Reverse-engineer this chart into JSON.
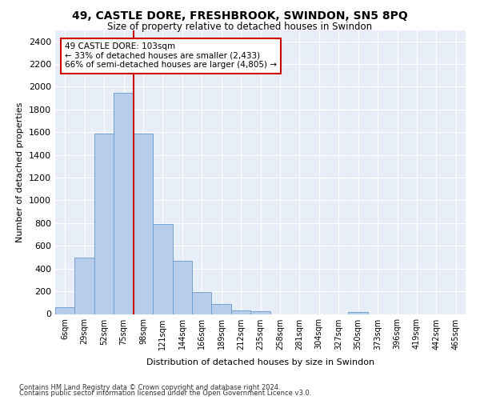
{
  "title": "49, CASTLE DORE, FRESHBROOK, SWINDON, SN5 8PQ",
  "subtitle": "Size of property relative to detached houses in Swindon",
  "xlabel": "Distribution of detached houses by size in Swindon",
  "ylabel": "Number of detached properties",
  "footnote1": "Contains HM Land Registry data © Crown copyright and database right 2024.",
  "footnote2": "Contains public sector information licensed under the Open Government Licence v3.0.",
  "categories": [
    "6sqm",
    "29sqm",
    "52sqm",
    "75sqm",
    "98sqm",
    "121sqm",
    "144sqm",
    "166sqm",
    "189sqm",
    "212sqm",
    "235sqm",
    "258sqm",
    "281sqm",
    "304sqm",
    "327sqm",
    "350sqm",
    "373sqm",
    "396sqm",
    "419sqm",
    "442sqm",
    "465sqm"
  ],
  "bar_values": [
    60,
    500,
    1590,
    1950,
    1590,
    790,
    470,
    195,
    90,
    35,
    25,
    0,
    0,
    0,
    0,
    20,
    0,
    0,
    0,
    0,
    0
  ],
  "bar_color": "#b8ccec",
  "bar_edge_color": "#6699cc",
  "vline_color": "#cc0000",
  "annotation_text": "49 CASTLE DORE: 103sqm\n← 33% of detached houses are smaller (2,433)\n66% of semi-detached houses are larger (4,805) →",
  "annotation_box_color": "#cc0000",
  "ylim": [
    0,
    2500
  ],
  "yticks": [
    0,
    200,
    400,
    600,
    800,
    1000,
    1200,
    1400,
    1600,
    1800,
    2000,
    2200,
    2400
  ],
  "bg_color": "#e8eef8",
  "grid_color": "#ffffff",
  "title_fontsize": 10,
  "subtitle_fontsize": 8.5
}
